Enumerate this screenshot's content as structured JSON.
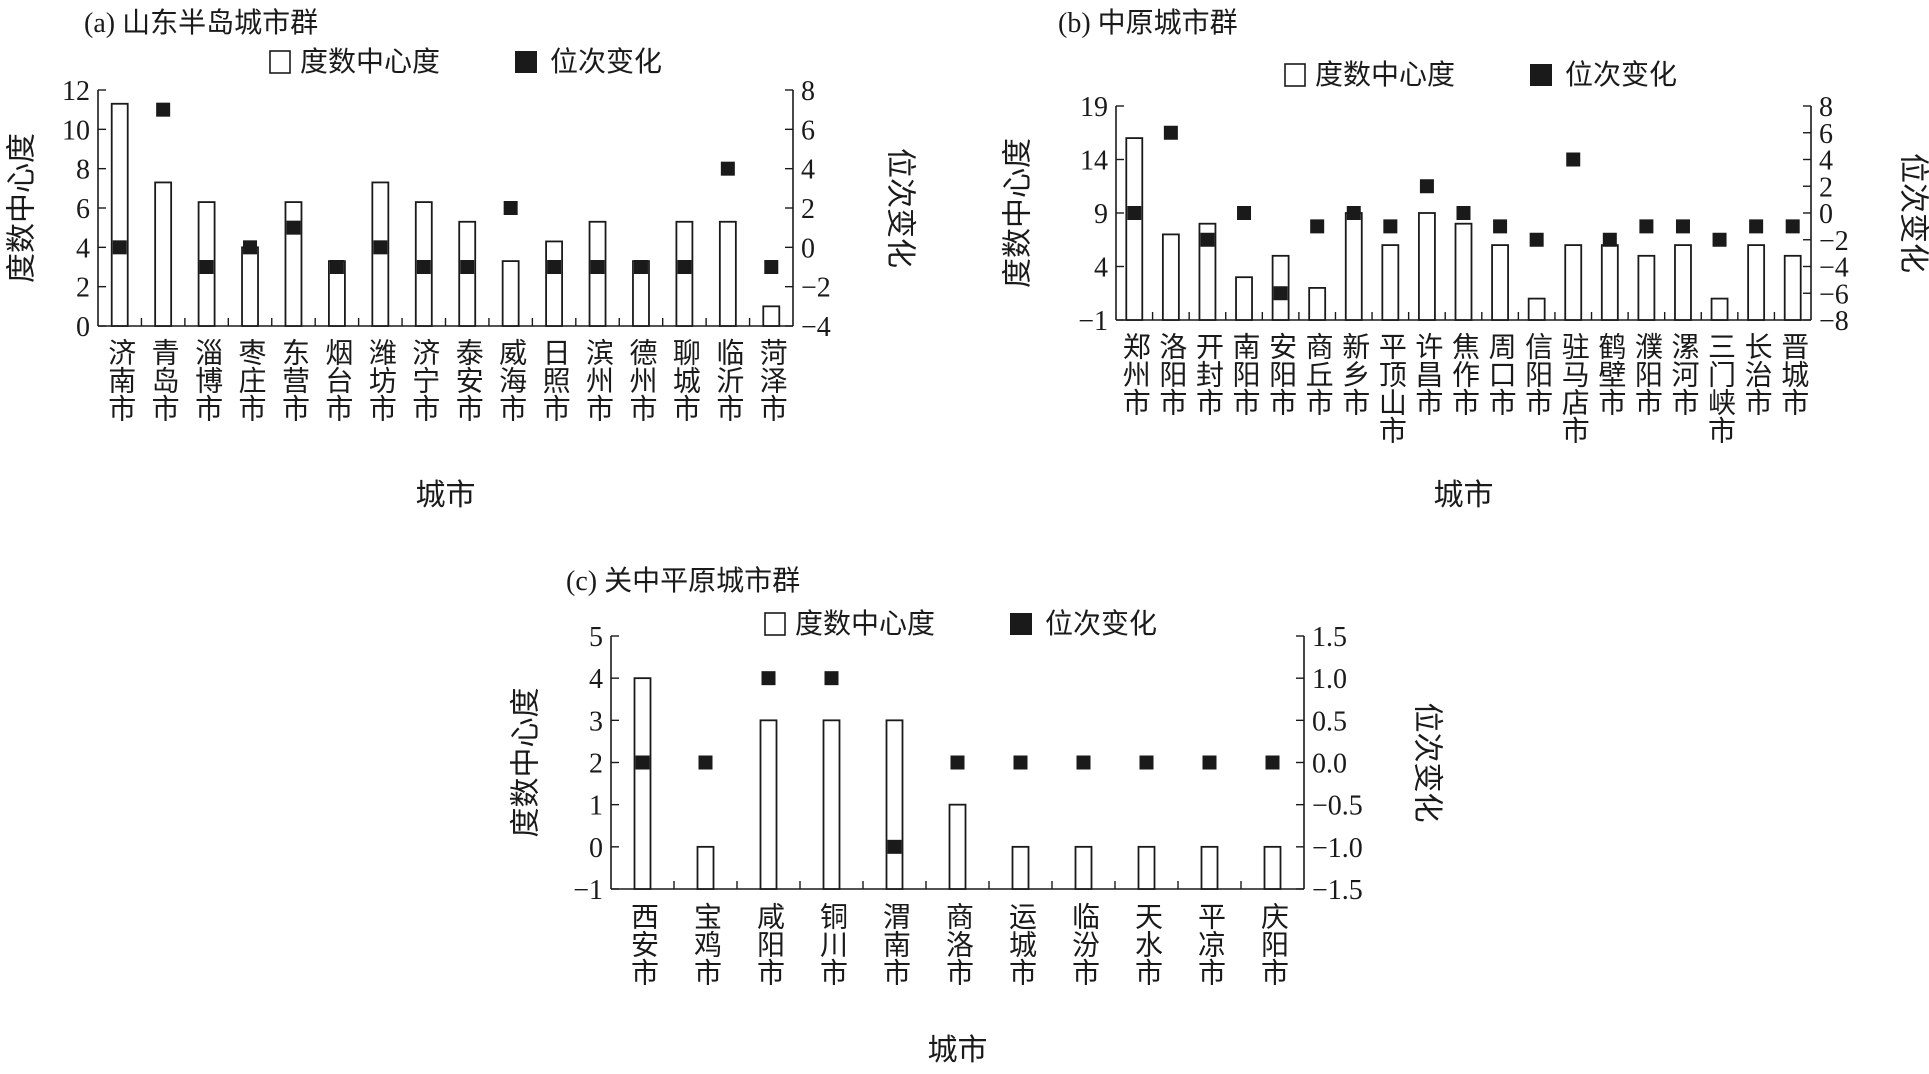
{
  "colors": {
    "ink": "#1a1a1a",
    "bar_fill": "#ffffff",
    "marker": "#1a1a1a"
  },
  "chart_data": [
    {
      "type": "bar",
      "title": "(a) 山东半岛城市群",
      "xlabel": "城市",
      "ylabel": "度数中心度",
      "y2label": "位次变化",
      "legend": [
        "度数中心度",
        "位次变化"
      ],
      "legend_position": "top-center",
      "categories": [
        "济南市",
        "青岛市",
        "淄博市",
        "枣庄市",
        "东营市",
        "烟台市",
        "潍坊市",
        "济宁市",
        "泰安市",
        "威海市",
        "日照市",
        "滨州市",
        "德州市",
        "聊城市",
        "临沂市",
        "菏泽市"
      ],
      "series": [
        {
          "name": "度数中心度",
          "axis": "left",
          "kind": "bar",
          "values": [
            11.3,
            7.3,
            6.3,
            4,
            6.3,
            3.3,
            7.3,
            6.3,
            5.3,
            3.3,
            4.3,
            5.3,
            3.3,
            5.3,
            5.3,
            1
          ]
        },
        {
          "name": "位次变化",
          "axis": "right",
          "kind": "marker",
          "values": [
            0,
            7,
            -1,
            0,
            1,
            -1,
            0,
            -1,
            -1,
            2,
            -1,
            -1,
            -1,
            -1,
            4,
            -1
          ]
        }
      ],
      "ylim": [
        0,
        12
      ],
      "yticks": [
        "0",
        "2",
        "4",
        "6",
        "8",
        "10",
        "12"
      ],
      "y2lim": [
        -4,
        8
      ],
      "y2ticks": [
        "−4",
        "−2",
        "0",
        "2",
        "4",
        "6",
        "8"
      ]
    },
    {
      "type": "bar",
      "title": "(b) 中原城市群",
      "xlabel": "城市",
      "ylabel": "度数中心度",
      "y2label": "位次变化",
      "legend": [
        "度数中心度",
        "位次变化"
      ],
      "legend_position": "top-center",
      "categories": [
        "郑州市",
        "洛阳市",
        "开封市",
        "南阳市",
        "安阳市",
        "商丘市",
        "新乡市",
        "平顶山市",
        "许昌市",
        "焦作市",
        "周口市",
        "信阳市",
        "驻马店市",
        "鹤壁市",
        "濮阳市",
        "漯河市",
        "三门峡市",
        "长治市",
        "晋城市"
      ],
      "series": [
        {
          "name": "度数中心度",
          "axis": "left",
          "kind": "bar",
          "values": [
            16,
            7,
            8,
            3,
            5,
            2,
            9,
            6,
            9,
            8,
            6,
            1,
            6,
            6,
            5,
            6,
            1,
            6,
            5
          ]
        },
        {
          "name": "位次变化",
          "axis": "right",
          "kind": "marker",
          "values": [
            0,
            6,
            -2,
            0,
            -6,
            -1,
            0,
            -1,
            2,
            0,
            -1,
            -2,
            4,
            -2,
            -1,
            -1,
            -2,
            -1,
            -1
          ]
        }
      ],
      "ylim": [
        -1,
        19
      ],
      "yticks": [
        "−1",
        "4",
        "9",
        "14",
        "19"
      ],
      "y2lim": [
        -8,
        8
      ],
      "y2ticks": [
        "−8",
        "−6",
        "−4",
        "−2",
        "0",
        "2",
        "4",
        "6",
        "8"
      ]
    },
    {
      "type": "bar",
      "title": "(c) 关中平原城市群",
      "xlabel": "城市",
      "ylabel": "度数中心度",
      "y2label": "位次变化",
      "legend": [
        "度数中心度",
        "位次变化"
      ],
      "legend_position": "top-center",
      "categories": [
        "西安市",
        "宝鸡市",
        "咸阳市",
        "铜川市",
        "渭南市",
        "商洛市",
        "运城市",
        "临汾市",
        "天水市",
        "平凉市",
        "庆阳市"
      ],
      "series": [
        {
          "name": "度数中心度",
          "axis": "left",
          "kind": "bar",
          "values": [
            4,
            0,
            3,
            3,
            3,
            1,
            0,
            0,
            0,
            0,
            0
          ]
        },
        {
          "name": "位次变化",
          "axis": "right",
          "kind": "marker",
          "values": [
            0,
            0,
            1,
            1,
            -1,
            0,
            0,
            0,
            0,
            0,
            0
          ]
        }
      ],
      "ylim": [
        -1,
        5
      ],
      "yticks": [
        "−1",
        "0",
        "1",
        "2",
        "3",
        "4",
        "5"
      ],
      "y2lim": [
        -1.5,
        1.5
      ],
      "y2ticks": [
        "−1.5",
        "−1.0",
        "−0.5",
        "0.0",
        "0.5",
        "1.0",
        "1.5"
      ]
    }
  ]
}
